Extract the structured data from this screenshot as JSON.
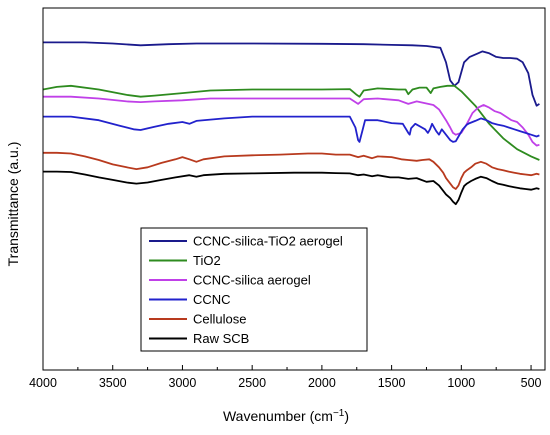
{
  "chart_data": {
    "type": "line",
    "xlabel": "Wavenumber (cm",
    "xlabel_sup": "−1",
    "xlabel_end": ")",
    "ylabel": "Transmittance (a.u.)",
    "xlim": [
      4000,
      400
    ],
    "x_reversed": true,
    "y_values_shown": false,
    "grid": false,
    "legend_position": "lower-left",
    "xticks": [
      4000,
      3500,
      3000,
      2500,
      2000,
      1500,
      1000,
      500
    ],
    "series": [
      {
        "name": "CCNC-silica-TiO2 aerogel",
        "color": "#1a1a8c",
        "points": [
          [
            4000,
            0.095
          ],
          [
            3700,
            0.095
          ],
          [
            3500,
            0.098
          ],
          [
            3300,
            0.103
          ],
          [
            3100,
            0.1
          ],
          [
            2900,
            0.098
          ],
          [
            2500,
            0.098
          ],
          [
            2000,
            0.099
          ],
          [
            1700,
            0.1
          ],
          [
            1500,
            0.102
          ],
          [
            1350,
            0.103
          ],
          [
            1250,
            0.105
          ],
          [
            1150,
            0.11
          ],
          [
            1110,
            0.15
          ],
          [
            1080,
            0.2
          ],
          [
            1050,
            0.215
          ],
          [
            1020,
            0.205
          ],
          [
            980,
            0.15
          ],
          [
            940,
            0.135
          ],
          [
            880,
            0.125
          ],
          [
            850,
            0.12
          ],
          [
            800,
            0.125
          ],
          [
            750,
            0.135
          ],
          [
            700,
            0.138
          ],
          [
            650,
            0.138
          ],
          [
            600,
            0.14
          ],
          [
            560,
            0.15
          ],
          [
            520,
            0.18
          ],
          [
            490,
            0.24
          ],
          [
            460,
            0.27
          ],
          [
            440,
            0.265
          ]
        ]
      },
      {
        "name": "TiO2",
        "color": "#2e8b1f",
        "points": [
          [
            4000,
            0.225
          ],
          [
            3900,
            0.218
          ],
          [
            3800,
            0.215
          ],
          [
            3600,
            0.225
          ],
          [
            3400,
            0.24
          ],
          [
            3300,
            0.245
          ],
          [
            3200,
            0.242
          ],
          [
            3000,
            0.235
          ],
          [
            2800,
            0.228
          ],
          [
            2500,
            0.225
          ],
          [
            2200,
            0.225
          ],
          [
            2000,
            0.225
          ],
          [
            1800,
            0.224
          ],
          [
            1750,
            0.24
          ],
          [
            1730,
            0.245
          ],
          [
            1700,
            0.228
          ],
          [
            1600,
            0.222
          ],
          [
            1450,
            0.225
          ],
          [
            1400,
            0.225
          ],
          [
            1380,
            0.238
          ],
          [
            1350,
            0.225
          ],
          [
            1300,
            0.22
          ],
          [
            1250,
            0.22
          ],
          [
            1220,
            0.235
          ],
          [
            1200,
            0.222
          ],
          [
            1150,
            0.218
          ],
          [
            1100,
            0.215
          ],
          [
            1050,
            0.215
          ],
          [
            1000,
            0.23
          ],
          [
            900,
            0.27
          ],
          [
            800,
            0.32
          ],
          [
            700,
            0.36
          ],
          [
            600,
            0.39
          ],
          [
            500,
            0.41
          ],
          [
            440,
            0.42
          ]
        ]
      },
      {
        "name": "CCNC-silica aerogel",
        "color": "#c040e8",
        "points": [
          [
            4000,
            0.245
          ],
          [
            3800,
            0.245
          ],
          [
            3600,
            0.25
          ],
          [
            3400,
            0.258
          ],
          [
            3300,
            0.26
          ],
          [
            3200,
            0.258
          ],
          [
            3000,
            0.255
          ],
          [
            2800,
            0.25
          ],
          [
            2500,
            0.25
          ],
          [
            2200,
            0.25
          ],
          [
            2000,
            0.25
          ],
          [
            1800,
            0.25
          ],
          [
            1740,
            0.265
          ],
          [
            1700,
            0.252
          ],
          [
            1600,
            0.25
          ],
          [
            1450,
            0.255
          ],
          [
            1380,
            0.265
          ],
          [
            1320,
            0.258
          ],
          [
            1200,
            0.268
          ],
          [
            1160,
            0.28
          ],
          [
            1110,
            0.31
          ],
          [
            1080,
            0.33
          ],
          [
            1060,
            0.345
          ],
          [
            1040,
            0.35
          ],
          [
            1000,
            0.345
          ],
          [
            960,
            0.32
          ],
          [
            920,
            0.29
          ],
          [
            880,
            0.275
          ],
          [
            840,
            0.268
          ],
          [
            800,
            0.275
          ],
          [
            760,
            0.285
          ],
          [
            720,
            0.29
          ],
          [
            680,
            0.3
          ],
          [
            640,
            0.31
          ],
          [
            600,
            0.315
          ],
          [
            560,
            0.33
          ],
          [
            520,
            0.35
          ],
          [
            490,
            0.37
          ],
          [
            460,
            0.38
          ],
          [
            440,
            0.378
          ]
        ]
      },
      {
        "name": "CCNC",
        "color": "#2222cc",
        "points": [
          [
            4000,
            0.3
          ],
          [
            3800,
            0.3
          ],
          [
            3600,
            0.31
          ],
          [
            3450,
            0.325
          ],
          [
            3400,
            0.33
          ],
          [
            3350,
            0.335
          ],
          [
            3300,
            0.337
          ],
          [
            3200,
            0.328
          ],
          [
            3100,
            0.32
          ],
          [
            3000,
            0.315
          ],
          [
            2950,
            0.32
          ],
          [
            2900,
            0.312
          ],
          [
            2700,
            0.305
          ],
          [
            2500,
            0.3
          ],
          [
            2200,
            0.3
          ],
          [
            2000,
            0.3
          ],
          [
            1800,
            0.3
          ],
          [
            1760,
            0.33
          ],
          [
            1740,
            0.365
          ],
          [
            1730,
            0.37
          ],
          [
            1710,
            0.34
          ],
          [
            1690,
            0.31
          ],
          [
            1600,
            0.31
          ],
          [
            1500,
            0.318
          ],
          [
            1420,
            0.32
          ],
          [
            1380,
            0.345
          ],
          [
            1370,
            0.35
          ],
          [
            1360,
            0.332
          ],
          [
            1330,
            0.32
          ],
          [
            1260,
            0.335
          ],
          [
            1240,
            0.345
          ],
          [
            1225,
            0.335
          ],
          [
            1210,
            0.32
          ],
          [
            1180,
            0.34
          ],
          [
            1160,
            0.35
          ],
          [
            1140,
            0.335
          ],
          [
            1110,
            0.35
          ],
          [
            1080,
            0.365
          ],
          [
            1060,
            0.37
          ],
          [
            1040,
            0.368
          ],
          [
            1020,
            0.355
          ],
          [
            990,
            0.335
          ],
          [
            960,
            0.322
          ],
          [
            940,
            0.318
          ],
          [
            900,
            0.312
          ],
          [
            860,
            0.305
          ],
          [
            820,
            0.31
          ],
          [
            780,
            0.318
          ],
          [
            740,
            0.322
          ],
          [
            700,
            0.325
          ],
          [
            660,
            0.33
          ],
          [
            620,
            0.335
          ],
          [
            580,
            0.34
          ],
          [
            540,
            0.345
          ],
          [
            500,
            0.35
          ],
          [
            460,
            0.355
          ],
          [
            440,
            0.352
          ]
        ]
      },
      {
        "name": "Cellulose",
        "color": "#b83a1e",
        "points": [
          [
            4000,
            0.4
          ],
          [
            3900,
            0.4
          ],
          [
            3800,
            0.402
          ],
          [
            3700,
            0.41
          ],
          [
            3600,
            0.42
          ],
          [
            3500,
            0.432
          ],
          [
            3400,
            0.44
          ],
          [
            3330,
            0.445
          ],
          [
            3250,
            0.44
          ],
          [
            3150,
            0.428
          ],
          [
            3050,
            0.418
          ],
          [
            3000,
            0.412
          ],
          [
            2950,
            0.418
          ],
          [
            2900,
            0.425
          ],
          [
            2850,
            0.418
          ],
          [
            2700,
            0.41
          ],
          [
            2500,
            0.407
          ],
          [
            2300,
            0.405
          ],
          [
            2100,
            0.402
          ],
          [
            2000,
            0.402
          ],
          [
            1900,
            0.405
          ],
          [
            1800,
            0.405
          ],
          [
            1740,
            0.412
          ],
          [
            1700,
            0.408
          ],
          [
            1640,
            0.415
          ],
          [
            1600,
            0.41
          ],
          [
            1500,
            0.412
          ],
          [
            1430,
            0.418
          ],
          [
            1380,
            0.42
          ],
          [
            1320,
            0.422
          ],
          [
            1280,
            0.42
          ],
          [
            1230,
            0.418
          ],
          [
            1200,
            0.425
          ],
          [
            1160,
            0.44
          ],
          [
            1130,
            0.455
          ],
          [
            1110,
            0.47
          ],
          [
            1080,
            0.485
          ],
          [
            1060,
            0.495
          ],
          [
            1040,
            0.5
          ],
          [
            1020,
            0.49
          ],
          [
            1000,
            0.47
          ],
          [
            980,
            0.455
          ],
          [
            960,
            0.448
          ],
          [
            930,
            0.44
          ],
          [
            900,
            0.43
          ],
          [
            860,
            0.425
          ],
          [
            820,
            0.43
          ],
          [
            780,
            0.44
          ],
          [
            740,
            0.445
          ],
          [
            700,
            0.448
          ],
          [
            660,
            0.452
          ],
          [
            620,
            0.455
          ],
          [
            580,
            0.458
          ],
          [
            540,
            0.46
          ],
          [
            500,
            0.462
          ],
          [
            460,
            0.458
          ],
          [
            440,
            0.46
          ]
        ]
      },
      {
        "name": "Raw SCB",
        "color": "#000000",
        "points": [
          [
            4000,
            0.452
          ],
          [
            3900,
            0.452
          ],
          [
            3800,
            0.453
          ],
          [
            3700,
            0.46
          ],
          [
            3600,
            0.468
          ],
          [
            3500,
            0.475
          ],
          [
            3400,
            0.482
          ],
          [
            3330,
            0.485
          ],
          [
            3250,
            0.482
          ],
          [
            3150,
            0.475
          ],
          [
            3050,
            0.468
          ],
          [
            2950,
            0.462
          ],
          [
            2900,
            0.466
          ],
          [
            2850,
            0.462
          ],
          [
            2700,
            0.458
          ],
          [
            2500,
            0.457
          ],
          [
            2200,
            0.455
          ],
          [
            2000,
            0.455
          ],
          [
            1900,
            0.456
          ],
          [
            1800,
            0.457
          ],
          [
            1740,
            0.462
          ],
          [
            1700,
            0.46
          ],
          [
            1640,
            0.465
          ],
          [
            1600,
            0.462
          ],
          [
            1510,
            0.468
          ],
          [
            1450,
            0.468
          ],
          [
            1380,
            0.472
          ],
          [
            1320,
            0.47
          ],
          [
            1250,
            0.48
          ],
          [
            1200,
            0.478
          ],
          [
            1160,
            0.49
          ],
          [
            1130,
            0.505
          ],
          [
            1110,
            0.515
          ],
          [
            1080,
            0.525
          ],
          [
            1060,
            0.535
          ],
          [
            1040,
            0.542
          ],
          [
            1020,
            0.53
          ],
          [
            1000,
            0.51
          ],
          [
            980,
            0.492
          ],
          [
            960,
            0.485
          ],
          [
            930,
            0.478
          ],
          [
            900,
            0.472
          ],
          [
            860,
            0.466
          ],
          [
            820,
            0.47
          ],
          [
            780,
            0.478
          ],
          [
            740,
            0.485
          ],
          [
            700,
            0.488
          ],
          [
            660,
            0.492
          ],
          [
            620,
            0.495
          ],
          [
            580,
            0.498
          ],
          [
            540,
            0.5
          ],
          [
            500,
            0.502
          ],
          [
            460,
            0.498
          ],
          [
            440,
            0.5
          ]
        ]
      }
    ]
  }
}
